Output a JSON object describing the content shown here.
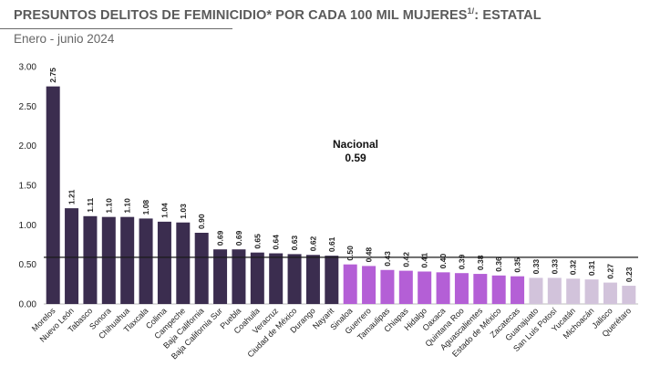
{
  "title": {
    "main": "PRESUNTOS DELITOS DE FEMINICIDIO* POR CADA 100 MIL MUJERES",
    "sup": "1/",
    "suffix": ": ESTATAL"
  },
  "subtitle": "Enero - junio 2024",
  "colors": {
    "high": "#3b2d4f",
    "mid": "#b45fd6",
    "low": "#d2c3db",
    "reference_line": "#1a1a1a",
    "axis_text": "#222222"
  },
  "chart_data": {
    "type": "bar",
    "title": "PRESUNTOS DELITOS DE FEMINICIDIO* POR CADA 100 MIL MUJERES1/: ESTATAL",
    "subtitle": "Enero - junio 2024",
    "ylim": [
      0,
      3
    ],
    "yticks": [
      "0.00",
      "0.50",
      "1.00",
      "1.50",
      "2.00",
      "2.50",
      "3.00"
    ],
    "grid": false,
    "categories": [
      "Morelos",
      "Nuevo León",
      "Tabasco",
      "Sonora",
      "Chihuahua",
      "Tlaxcala",
      "Colima",
      "Campeche",
      "Baja California",
      "Baja California Sur",
      "Puebla",
      "Coahuila",
      "Veracruz",
      "Ciudad de México",
      "Durango",
      "Nayarit",
      "Sinaloa",
      "Guerrero",
      "Tamaulipas",
      "Chiapas",
      "Hidalgo",
      "Oaxaca",
      "Quintana Roo",
      "Aguascalientes",
      "Estado de México",
      "Zacatecas",
      "Guanajuato",
      "San Luis Potosí",
      "Yucatán",
      "Michoacán",
      "Jalisco",
      "Querétaro"
    ],
    "values": [
      2.75,
      1.21,
      1.11,
      1.1,
      1.1,
      1.08,
      1.04,
      1.03,
      0.9,
      0.69,
      0.69,
      0.65,
      0.64,
      0.63,
      0.62,
      0.61,
      0.5,
      0.48,
      0.43,
      0.42,
      0.41,
      0.4,
      0.39,
      0.38,
      0.36,
      0.35,
      0.33,
      0.33,
      0.32,
      0.31,
      0.27,
      0.23
    ],
    "labels": [
      "2.75",
      "1.21",
      "1.11",
      "1.10",
      "1.10",
      "1.08",
      "1.04",
      "1.03",
      "0.90",
      "0.69",
      "0.69",
      "0.65",
      "0.64",
      "0.63",
      "0.62",
      "0.61",
      "0.50",
      "0.48",
      "0.43",
      "0.42",
      "0.41",
      "0.40",
      "0.39",
      "0.38",
      "0.36",
      "0.35",
      "0.33",
      "0.33",
      "0.32",
      "0.31",
      "0.27",
      "0.23"
    ],
    "groups": [
      "high",
      "high",
      "high",
      "high",
      "high",
      "high",
      "high",
      "high",
      "high",
      "high",
      "high",
      "high",
      "high",
      "high",
      "high",
      "high",
      "mid",
      "mid",
      "mid",
      "mid",
      "mid",
      "mid",
      "mid",
      "mid",
      "mid",
      "mid",
      "low",
      "low",
      "low",
      "low",
      "low",
      "low"
    ],
    "reference": {
      "label": "Nacional",
      "value": 0.59,
      "value_label": "0.59"
    }
  }
}
